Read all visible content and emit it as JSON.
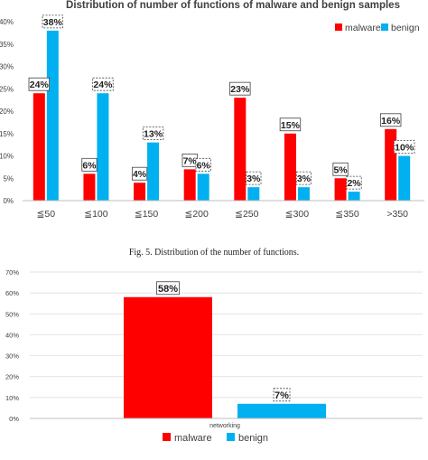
{
  "colors": {
    "malware": "#ff0000",
    "benign": "#00b0f0",
    "axis": "#bfbfbf",
    "grid": "#d9d9d9",
    "text": "#404040"
  },
  "figure_caption": "Fig. 5.  Distribution of the number of functions.",
  "chart_data": [
    {
      "type": "bar",
      "title": "Distribution of number of functions of malware and benign samples",
      "categories": [
        "≦50",
        "≦100",
        "≦150",
        "≦200",
        "≦250",
        "≦300",
        "≦350",
        ">350"
      ],
      "series": [
        {
          "name": "malware",
          "values": [
            24,
            6,
            4,
            7,
            23,
            15,
            5,
            16
          ]
        },
        {
          "name": "benign",
          "values": [
            38,
            24,
            13,
            6,
            3,
            3,
            2,
            10
          ]
        }
      ],
      "data_labels": {
        "malware": [
          "24%",
          "6%",
          "4%",
          "7%",
          "23%",
          "15%",
          "5%",
          "16%"
        ],
        "benign": [
          "38%",
          "24%",
          "13%",
          "6%",
          "3%",
          "3%",
          "2%",
          "10%"
        ]
      },
      "y_ticks": [
        "0%",
        "5%",
        "10%",
        "15%",
        "20%",
        "25%",
        "30%",
        "35%",
        "40%"
      ],
      "ylim": [
        0,
        40
      ],
      "legend": [
        "malware",
        "benign"
      ],
      "legend_position": "top-right",
      "grid": false
    },
    {
      "type": "bar",
      "title": "",
      "categories": [
        "networking"
      ],
      "series": [
        {
          "name": "malware",
          "values": [
            58
          ]
        },
        {
          "name": "benign",
          "values": [
            7
          ]
        }
      ],
      "data_labels": {
        "malware": [
          "58%"
        ],
        "benign": [
          "7%"
        ]
      },
      "y_ticks": [
        "0%",
        "10%",
        "20%",
        "30%",
        "40%",
        "50%",
        "60%",
        "70%"
      ],
      "ylim": [
        0,
        70
      ],
      "legend": [
        "malware",
        "benign"
      ],
      "legend_position": "bottom-center",
      "grid": true
    }
  ]
}
